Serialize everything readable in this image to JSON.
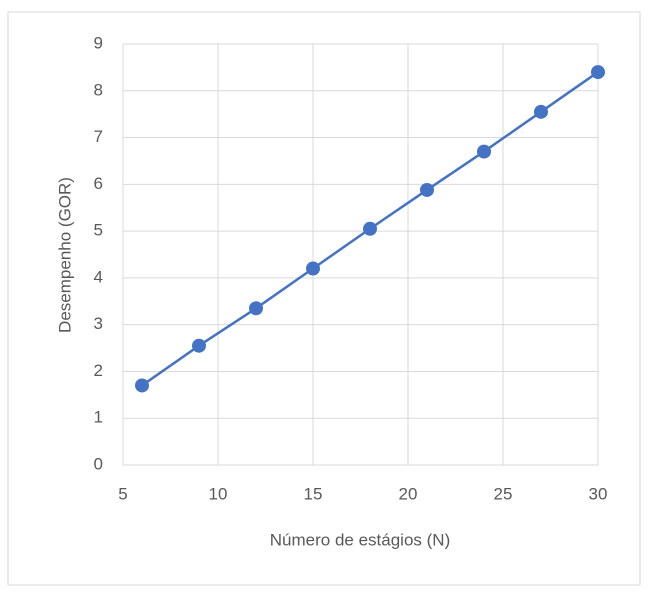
{
  "chart_data": {
    "type": "line",
    "x_label": "Número de estágios (N)",
    "y_label": "Desempenho (GOR)",
    "x": [
      6,
      9,
      12,
      15,
      18,
      21,
      24,
      27,
      30
    ],
    "series": [
      {
        "color": "#4472c4",
        "values": [
          1.7,
          2.55,
          3.35,
          4.2,
          5.05,
          5.88,
          6.7,
          7.55,
          8.4
        ]
      }
    ],
    "xlim": [
      5,
      30
    ],
    "xticks": [
      5,
      10,
      15,
      20,
      25,
      30
    ],
    "ylim": [
      0,
      9
    ],
    "yticks": [
      0,
      1,
      2,
      3,
      4,
      5,
      6,
      7,
      8,
      9
    ],
    "grid": true
  }
}
